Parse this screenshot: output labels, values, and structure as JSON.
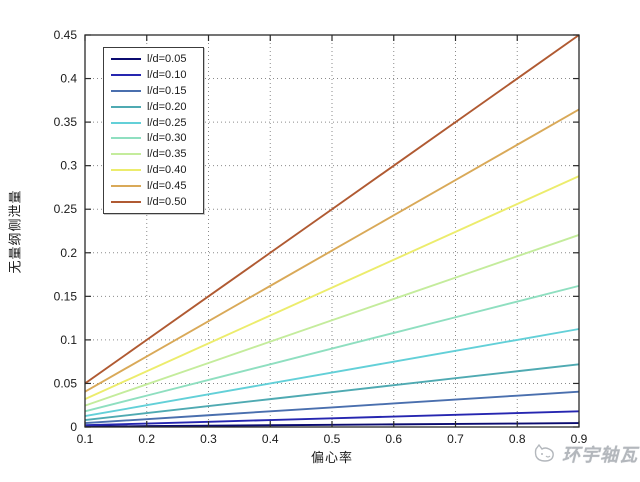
{
  "watermark": {
    "logo": "cat-sketch-icon",
    "text": "环宇轴瓦"
  },
  "colors": {
    "axis": "#2a2a2a",
    "grid": "#4d4d4d",
    "tick_label": "#1a1a1a",
    "background": "#ffffff",
    "watermark": "#b3b7bc"
  },
  "chart_data": {
    "type": "line",
    "title": "",
    "xlabel": "偏心率",
    "ylabel": "无量纲侧泄量",
    "xlim": [
      0.1,
      0.9
    ],
    "ylim": [
      0,
      0.45
    ],
    "grid": "dotted",
    "box": true,
    "legend_position": "upper-left-inside",
    "x_tick_labels": [
      "0.1",
      "0.2",
      "0.3",
      "0.4",
      "0.5",
      "0.6",
      "0.7",
      "0.8",
      "0.9"
    ],
    "y_tick_labels": [
      "0",
      "0.05",
      "0.1",
      "0.15",
      "0.2",
      "0.25",
      "0.3",
      "0.35",
      "0.4",
      "0.45"
    ],
    "x": [
      0.1,
      0.2,
      0.3,
      0.4,
      0.5,
      0.6,
      0.7,
      0.8,
      0.9
    ],
    "series": [
      {
        "name": "l/d=0.05",
        "color": "#0b0b70",
        "values": [
          0.0005,
          0.001,
          0.0015,
          0.002,
          0.0025,
          0.003,
          0.0035,
          0.004,
          0.0045
        ]
      },
      {
        "name": "l/d=0.10",
        "color": "#2626b0",
        "values": [
          0.002,
          0.004,
          0.006,
          0.008,
          0.01,
          0.012,
          0.014,
          0.016,
          0.018
        ]
      },
      {
        "name": "l/d=0.15",
        "color": "#4a6fae",
        "values": [
          0.0045,
          0.009,
          0.0135,
          0.018,
          0.0225,
          0.027,
          0.0315,
          0.036,
          0.0405
        ]
      },
      {
        "name": "l/d=0.20",
        "color": "#4faab2",
        "values": [
          0.008,
          0.016,
          0.024,
          0.032,
          0.04,
          0.048,
          0.056,
          0.064,
          0.072
        ]
      },
      {
        "name": "l/d=0.25",
        "color": "#63d0d8",
        "values": [
          0.0125,
          0.025,
          0.0375,
          0.05,
          0.0625,
          0.075,
          0.0875,
          0.1,
          0.1125
        ]
      },
      {
        "name": "l/d=0.30",
        "color": "#8fdfc0",
        "values": [
          0.018,
          0.036,
          0.054,
          0.072,
          0.09,
          0.108,
          0.126,
          0.144,
          0.162
        ]
      },
      {
        "name": "l/d=0.35",
        "color": "#c4ec9c",
        "values": [
          0.0245,
          0.049,
          0.0735,
          0.098,
          0.1225,
          0.147,
          0.1715,
          0.196,
          0.2205
        ]
      },
      {
        "name": "l/d=0.40",
        "color": "#ecec6c",
        "values": [
          0.032,
          0.064,
          0.096,
          0.128,
          0.16,
          0.192,
          0.224,
          0.256,
          0.288
        ]
      },
      {
        "name": "l/d=0.45",
        "color": "#d9a958",
        "values": [
          0.0405,
          0.081,
          0.1215,
          0.162,
          0.2025,
          0.243,
          0.2835,
          0.324,
          0.3645
        ]
      },
      {
        "name": "l/d=0.50",
        "color": "#b05a32",
        "values": [
          0.05,
          0.1,
          0.15,
          0.2,
          0.25,
          0.3,
          0.35,
          0.4,
          0.45
        ]
      }
    ]
  }
}
